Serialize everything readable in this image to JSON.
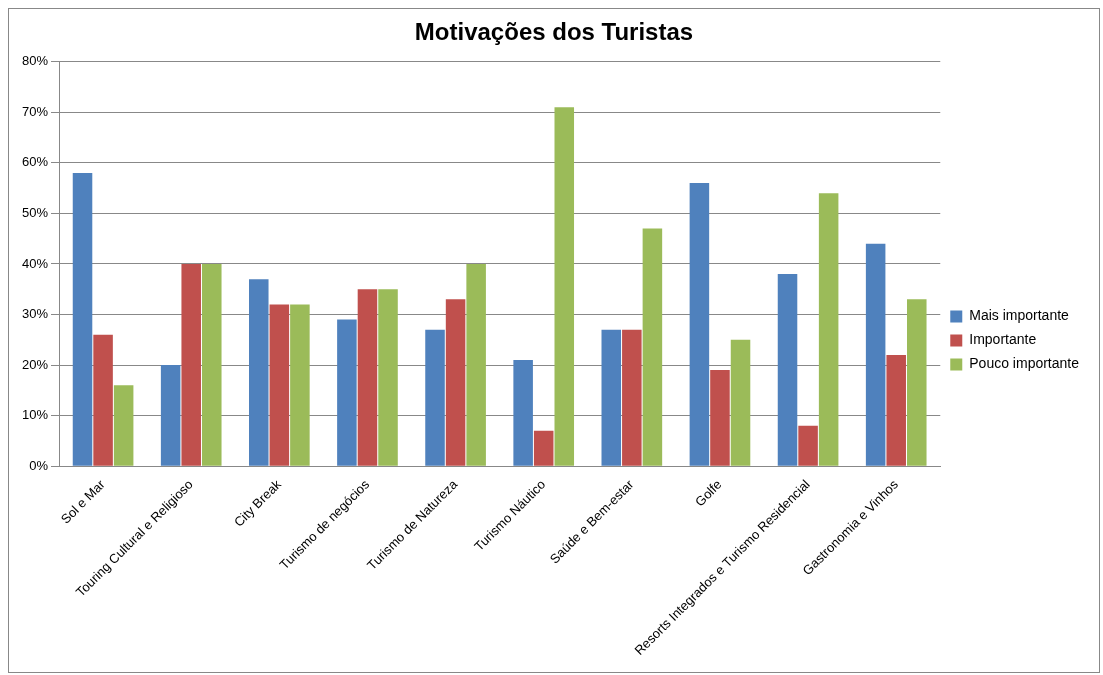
{
  "chart_data": {
    "type": "bar",
    "title": "Motivações dos Turistas",
    "categories": [
      "Sol e Mar",
      "Touring Cultural e Religioso",
      "City Break",
      "Turismo de negócios",
      "Turismo de Natureza",
      "Turismo Náutico",
      "Saúde e Bem-estar",
      "Golfe",
      "Resorts Integrados e Turismo Residencial",
      "Gastronomia e Vinhos"
    ],
    "series": [
      {
        "name": "Mais importante",
        "color": "#4f81bd",
        "values": [
          58,
          20,
          37,
          29,
          27,
          21,
          27,
          56,
          38,
          44
        ]
      },
      {
        "name": "Importante",
        "color": "#c0504d",
        "values": [
          26,
          40,
          32,
          35,
          33,
          7,
          27,
          19,
          8,
          22
        ]
      },
      {
        "name": "Pouco importante",
        "color": "#9bbb59",
        "values": [
          16,
          40,
          32,
          35,
          40,
          71,
          47,
          25,
          54,
          33
        ]
      }
    ],
    "ylim": [
      0,
      80
    ],
    "yticks": [
      {
        "value": 0,
        "label": "0%"
      },
      {
        "value": 10,
        "label": "10%"
      },
      {
        "value": 20,
        "label": "20%"
      },
      {
        "value": 30,
        "label": "30%"
      },
      {
        "value": 40,
        "label": "40%"
      },
      {
        "value": 50,
        "label": "50%"
      },
      {
        "value": 60,
        "label": "60%"
      },
      {
        "value": 70,
        "label": "70%"
      },
      {
        "value": 80,
        "label": "80%"
      }
    ],
    "grid": "y",
    "legend": "right"
  }
}
